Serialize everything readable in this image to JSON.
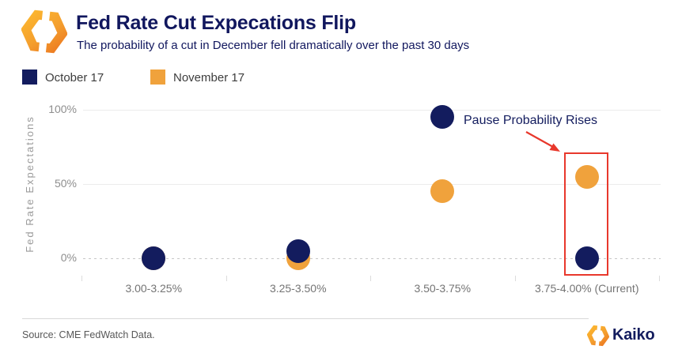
{
  "header": {
    "title": "Fed Rate Cut Expecations Flip",
    "subtitle": "The probability of a cut in December fell dramatically over the past 30 days"
  },
  "legend": [
    {
      "label": "October 17",
      "color": "#131C5E"
    },
    {
      "label": "November 17",
      "color": "#F0A23C"
    }
  ],
  "chart_data": {
    "type": "scatter",
    "title": "Fed Rate Cut Expecations Flip",
    "ylabel": "Fed Rate Expectations",
    "categories": [
      "3.00-3.25%",
      "3.25-3.50%",
      "3.50-3.75%",
      "3.75-4.00% (Current)"
    ],
    "series": [
      {
        "name": "November 17",
        "color": "#F0A23C",
        "values": [
          0,
          0,
          45,
          55
        ]
      },
      {
        "name": "October 17",
        "color": "#131C5E",
        "values": [
          0,
          5,
          95,
          0
        ]
      }
    ],
    "ylim": [
      0,
      100
    ],
    "yticks": [
      {
        "value": 100,
        "label": "100%"
      },
      {
        "value": 50,
        "label": "50%"
      },
      {
        "value": 0,
        "label": "0%"
      }
    ],
    "grid": "horizontal",
    "legend_position": "top-left",
    "annotation": {
      "text": "Pause Probability Rises",
      "color": "#131C5E",
      "arrow_color": "#E8382C",
      "target": "3.75-4.00% (Current)"
    },
    "highlight": {
      "category": "3.75-4.00% (Current)",
      "color": "#E8382C"
    }
  },
  "footer": {
    "source": "Source: CME FedWatch Data.",
    "brand": "Kaiko"
  },
  "colors": {
    "navy": "#131C5E",
    "orange": "#F0A23C",
    "red": "#E8382C"
  }
}
